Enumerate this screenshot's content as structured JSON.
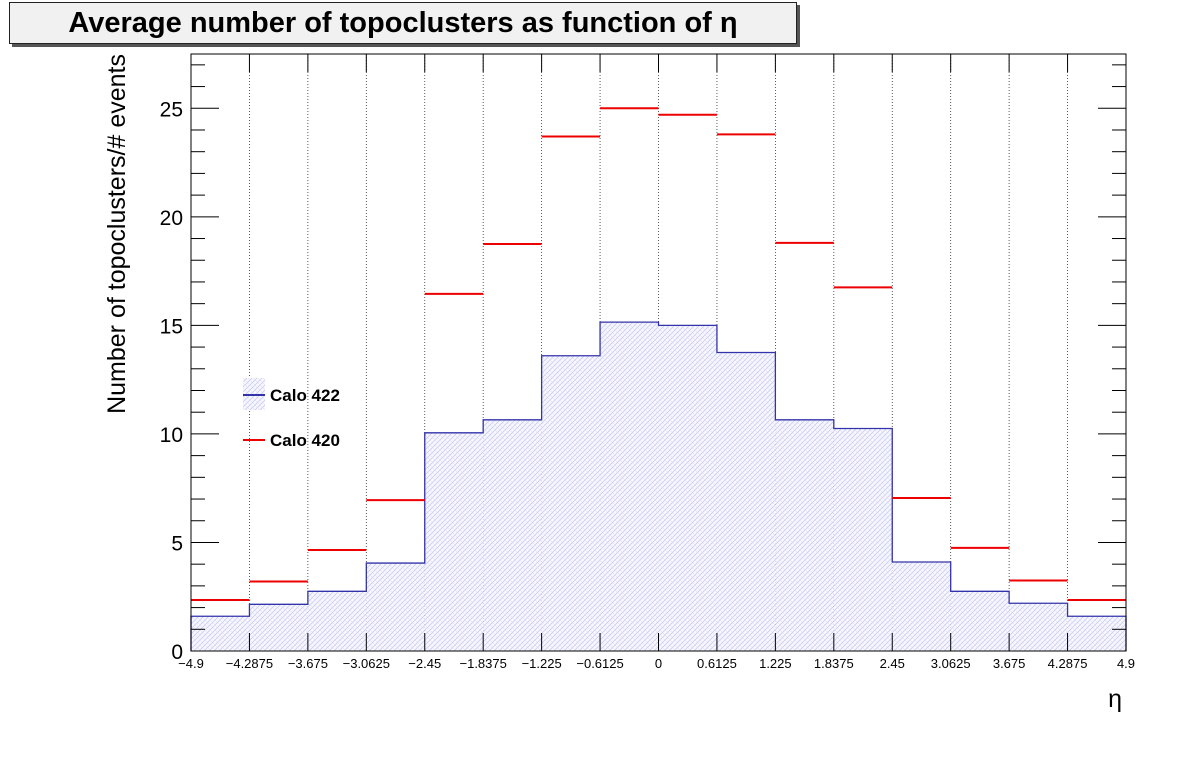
{
  "chart_data": {
    "type": "bar",
    "title": "Average number of topoclusters as function of η",
    "xlabel": "η",
    "ylabel": "Number of topoclusters/# events",
    "xlim": [
      -4.9,
      4.9
    ],
    "ylim": [
      0,
      27.5
    ],
    "grid": "x-dotted",
    "bin_edges": [
      -4.9,
      -4.2875,
      -3.675,
      -3.0625,
      -2.45,
      -1.8375,
      -1.225,
      -0.6125,
      0,
      0.6125,
      1.225,
      1.8375,
      2.45,
      3.0625,
      3.675,
      4.2875,
      4.9
    ],
    "x_tick_labels": [
      "−4.9",
      "−4.2875",
      "−3.675",
      "−3.0625",
      "−2.45",
      "−1.8375",
      "−1.225",
      "−0.6125",
      "0",
      "0.6125",
      "1.225",
      "1.8375",
      "2.45",
      "3.0625",
      "3.675",
      "4.2875",
      "4.9"
    ],
    "y_ticks": [
      0,
      5,
      10,
      15,
      20,
      25
    ],
    "legend_position": "left-middle",
    "series": [
      {
        "name": "Calo 422",
        "color": "#3333aa",
        "style": "filled-step-hatched",
        "values": [
          1.6,
          2.15,
          2.75,
          4.05,
          10.05,
          10.65,
          13.6,
          15.15,
          15.0,
          13.75,
          10.65,
          10.25,
          4.1,
          2.75,
          2.2,
          1.6
        ]
      },
      {
        "name": "Calo 420",
        "color": "#ee0000",
        "style": "horizontal-marker",
        "values": [
          2.35,
          3.2,
          4.65,
          6.95,
          16.45,
          18.75,
          23.7,
          25.0,
          24.7,
          23.8,
          18.8,
          16.75,
          7.05,
          4.75,
          3.25,
          2.35
        ]
      }
    ]
  }
}
